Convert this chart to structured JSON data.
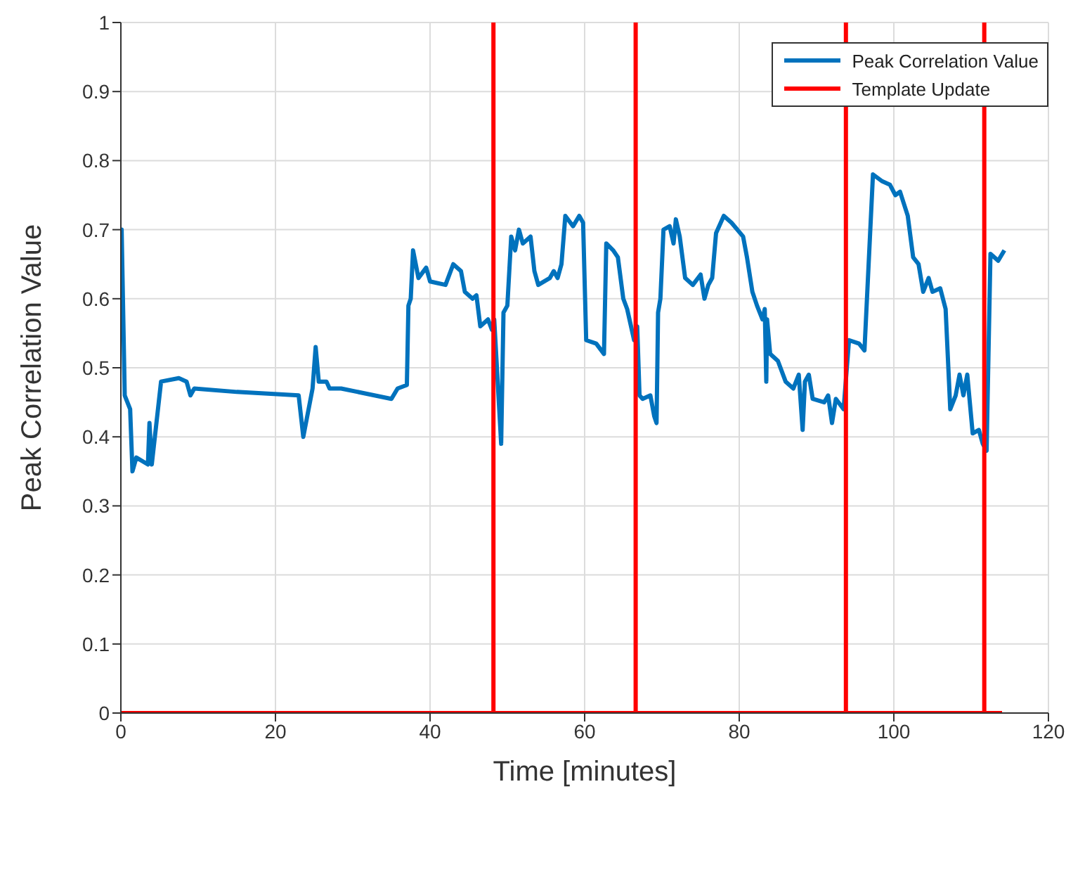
{
  "chart_data": {
    "type": "line",
    "xlabel": "Time [minutes]",
    "ylabel": "Peak Correlation Value",
    "xlim": [
      0,
      120
    ],
    "xticks": [
      0,
      20,
      40,
      60,
      80,
      100,
      120
    ],
    "ylim": [
      0,
      1
    ],
    "yticks": [
      0,
      0.1,
      0.2,
      0.3,
      0.4,
      0.5,
      0.6,
      0.7,
      0.8,
      0.9,
      1
    ],
    "grid": true,
    "legend": "top right",
    "line_style": "solid",
    "marker": "none",
    "series": [
      {
        "name": "Peak Correlation Value",
        "color": "#0072bd",
        "x": [
          0,
          0.1,
          0.5,
          1.2,
          1.5,
          2,
          3.5,
          3.7,
          4,
          5.2,
          7.5,
          8.5,
          9,
          9.5,
          15,
          23,
          23.6,
          24.8,
          25.2,
          25.6,
          26.6,
          27,
          28.5,
          35,
          35.8,
          37,
          37.2,
          37.5,
          37.8,
          38.5,
          39.5,
          40,
          42,
          43,
          44,
          44.5,
          45.5,
          46,
          46.5,
          47.5,
          48,
          48.3,
          49.2,
          49.5,
          50,
          50.5,
          51,
          51.5,
          52,
          53,
          53.5,
          54,
          55.5,
          56,
          56.5,
          57,
          57.5,
          58.5,
          59.3,
          59.8,
          60.2,
          61.5,
          62.5,
          62.8,
          63.7,
          64.3,
          65,
          65.5,
          66.4,
          66.8,
          67.1,
          67.5,
          68.5,
          69,
          69.3,
          69.5,
          69.8,
          70.2,
          71,
          71.5,
          71.8,
          72.3,
          73,
          74,
          75,
          75.5,
          76,
          76.5,
          77,
          78,
          79,
          80.5,
          81,
          81.7,
          82.3,
          83,
          83.3,
          83.5,
          83.6,
          84,
          85,
          86,
          87,
          87.7,
          88.2,
          88.5,
          89,
          89.5,
          91,
          91.5,
          92,
          92.5,
          93.5,
          94.2,
          95.5,
          96.2,
          97.3,
          98.5,
          99.5,
          100.2,
          100.8,
          101.8,
          102.5,
          103.2,
          103.8,
          104.5,
          105,
          106,
          106.7,
          107.3,
          108,
          108.5,
          109,
          109.5,
          110.2,
          111,
          111.5,
          112,
          112.5,
          113.5,
          114.3
        ],
        "values": [
          0.65,
          0.7,
          0.46,
          0.44,
          0.35,
          0.37,
          0.36,
          0.42,
          0.36,
          0.48,
          0.485,
          0.48,
          0.46,
          0.47,
          0.465,
          0.46,
          0.4,
          0.47,
          0.53,
          0.48,
          0.48,
          0.47,
          0.47,
          0.455,
          0.47,
          0.475,
          0.59,
          0.6,
          0.67,
          0.63,
          0.645,
          0.625,
          0.62,
          0.65,
          0.64,
          0.61,
          0.6,
          0.605,
          0.56,
          0.57,
          0.555,
          0.57,
          0.39,
          0.58,
          0.59,
          0.69,
          0.67,
          0.7,
          0.68,
          0.69,
          0.64,
          0.62,
          0.63,
          0.64,
          0.63,
          0.65,
          0.72,
          0.705,
          0.72,
          0.71,
          0.54,
          0.535,
          0.52,
          0.68,
          0.67,
          0.66,
          0.6,
          0.585,
          0.54,
          0.56,
          0.46,
          0.455,
          0.46,
          0.43,
          0.42,
          0.58,
          0.6,
          0.7,
          0.705,
          0.68,
          0.715,
          0.69,
          0.63,
          0.62,
          0.635,
          0.6,
          0.62,
          0.63,
          0.695,
          0.72,
          0.71,
          0.69,
          0.66,
          0.61,
          0.59,
          0.57,
          0.585,
          0.48,
          0.57,
          0.52,
          0.51,
          0.48,
          0.47,
          0.49,
          0.41,
          0.48,
          0.49,
          0.455,
          0.45,
          0.46,
          0.42,
          0.455,
          0.44,
          0.54,
          0.535,
          0.525,
          0.78,
          0.77,
          0.765,
          0.75,
          0.755,
          0.72,
          0.66,
          0.65,
          0.61,
          0.63,
          0.61,
          0.615,
          0.585,
          0.44,
          0.46,
          0.49,
          0.46,
          0.49,
          0.405,
          0.41,
          0.39,
          0.38,
          0.665,
          0.655,
          0.67
        ]
      },
      {
        "name": "Template Update",
        "color": "#ff0000",
        "x": [
          0,
          48.2,
          48.2,
          48.2,
          66.6,
          66.6,
          66.6,
          93.8,
          93.8,
          93.8,
          111.7,
          111.7,
          111.7,
          114
        ],
        "values": [
          0,
          0,
          1,
          0,
          0,
          1,
          0,
          0,
          1,
          0,
          0,
          1,
          0,
          0
        ]
      }
    ]
  }
}
